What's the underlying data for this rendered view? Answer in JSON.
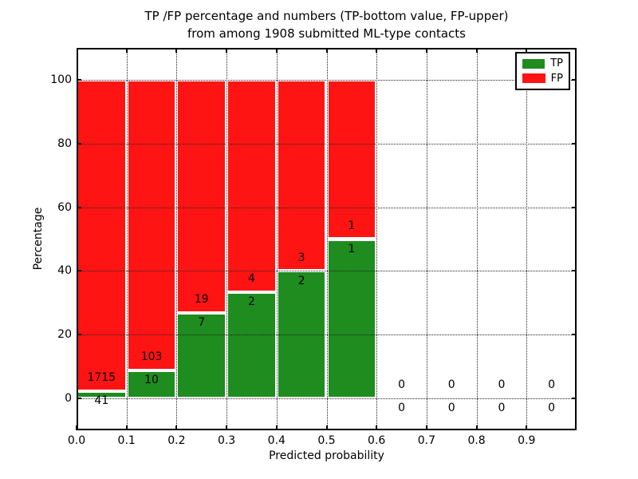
{
  "title": {
    "line1": "TP /FP percentage and numbers (TP-bottom value, FP-upper)",
    "line2": "from among 1908 submitted ML-type contacts"
  },
  "colors": {
    "tp_green": "#1E8C1E",
    "fp_red": "#FF1414",
    "background": "#ffffff",
    "grid": "#222222",
    "text": "#000000"
  },
  "chart_data": {
    "type": "bar",
    "stacked": true,
    "title": "TP /FP percentage and numbers (TP-bottom value, FP-upper) from among 1908 submitted ML-type contacts",
    "xlabel": "Predicted probability",
    "ylabel": "Percentage",
    "xlim": [
      0.0,
      1.0
    ],
    "ylim": [
      -10,
      110
    ],
    "xticks": [
      "0.0",
      "0.1",
      "0.2",
      "0.3",
      "0.4",
      "0.5",
      "0.6",
      "0.7",
      "0.8",
      "0.9"
    ],
    "yticks": [
      0,
      20,
      40,
      60,
      80,
      100
    ],
    "grid": true,
    "legend_position": "upper-right",
    "series": [
      {
        "name": "TP",
        "color": "#1E8C1E"
      },
      {
        "name": "FP",
        "color": "#FF1414"
      }
    ],
    "bins": [
      {
        "range": [
          0.0,
          0.1
        ],
        "tp": 41,
        "fp": 1715,
        "tp_pct": 2.33
      },
      {
        "range": [
          0.1,
          0.2
        ],
        "tp": 10,
        "fp": 103,
        "tp_pct": 8.85
      },
      {
        "range": [
          0.2,
          0.3
        ],
        "tp": 7,
        "fp": 19,
        "tp_pct": 26.92
      },
      {
        "range": [
          0.3,
          0.4
        ],
        "tp": 2,
        "fp": 4,
        "tp_pct": 33.33
      },
      {
        "range": [
          0.4,
          0.5
        ],
        "tp": 2,
        "fp": 3,
        "tp_pct": 40.0
      },
      {
        "range": [
          0.5,
          0.6
        ],
        "tp": 1,
        "fp": 1,
        "tp_pct": 50.0
      },
      {
        "range": [
          0.6,
          0.7
        ],
        "tp": 0,
        "fp": 0,
        "tp_pct": 0
      },
      {
        "range": [
          0.7,
          0.8
        ],
        "tp": 0,
        "fp": 0,
        "tp_pct": 0
      },
      {
        "range": [
          0.8,
          0.9
        ],
        "tp": 0,
        "fp": 0,
        "tp_pct": 0
      },
      {
        "range": [
          0.9,
          1.0
        ],
        "tp": 0,
        "fp": 0,
        "tp_pct": 0
      }
    ]
  }
}
